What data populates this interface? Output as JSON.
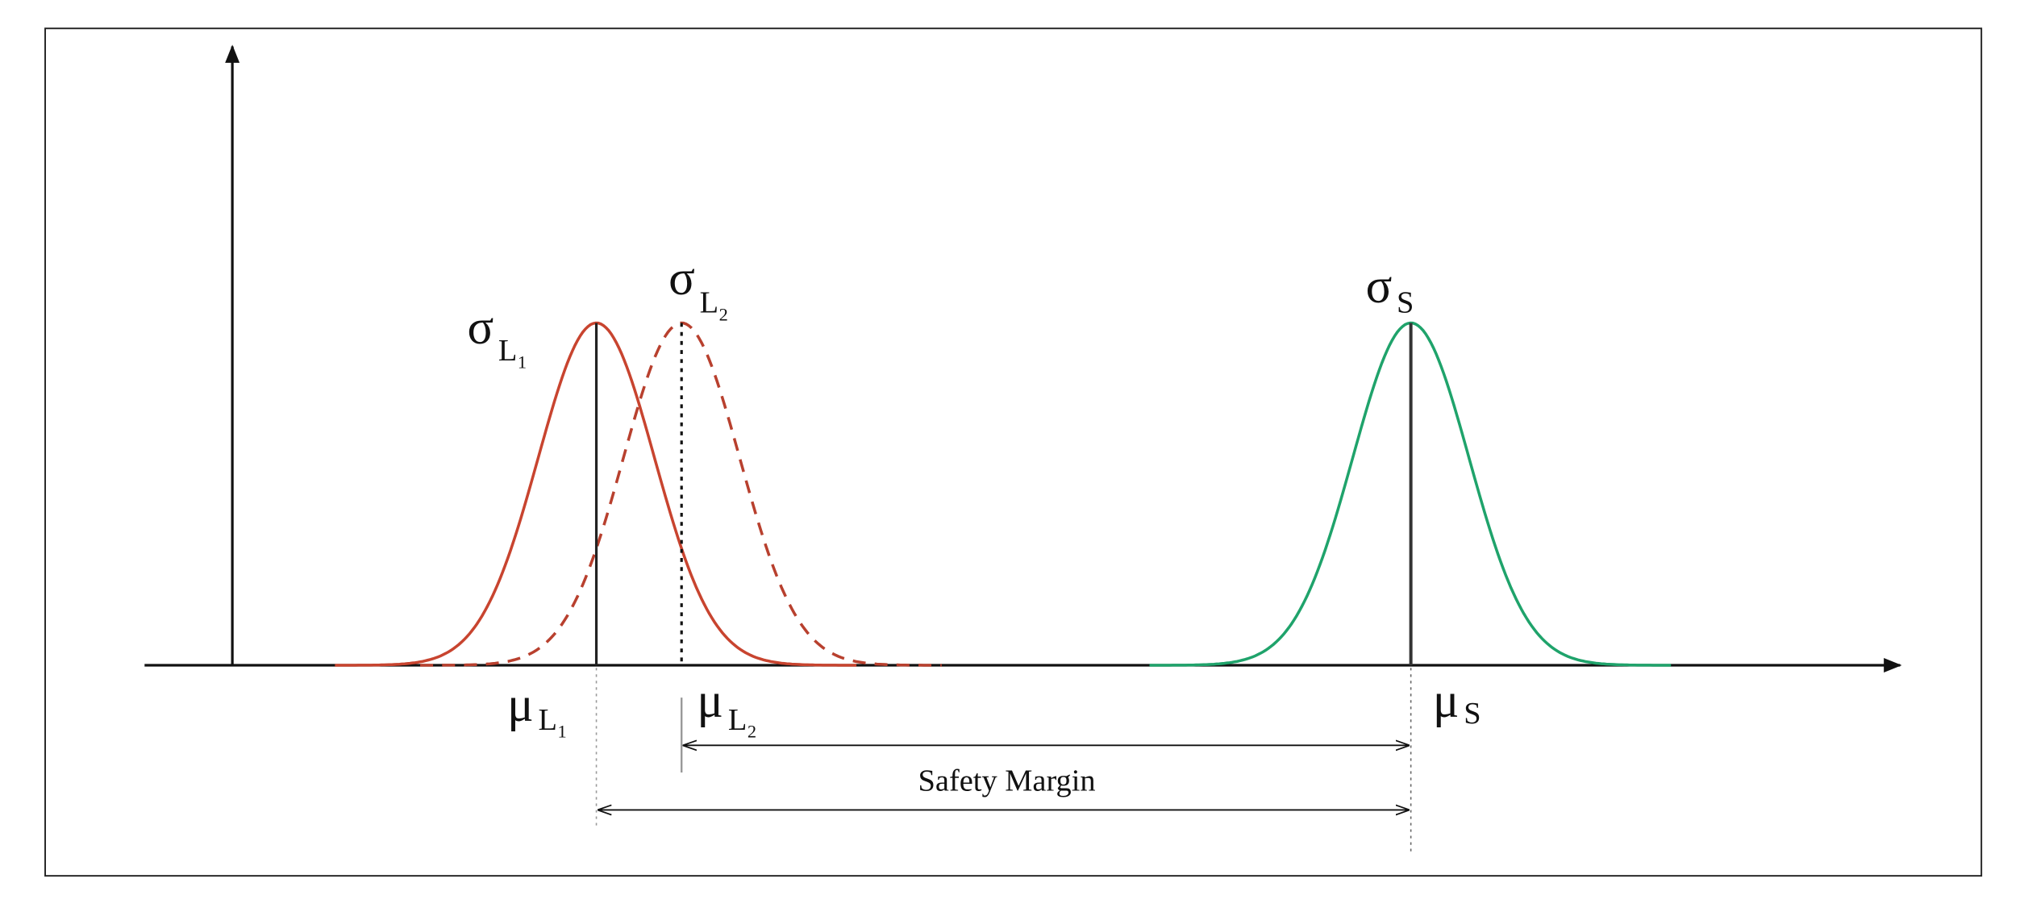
{
  "labels": {
    "sigma_l1": {
      "symbol": "σ",
      "subscript": "L",
      "index": "1"
    },
    "sigma_l2": {
      "symbol": "σ",
      "subscript": "L",
      "index": "2"
    },
    "sigma_s": {
      "symbol": "σ",
      "subscript": "S"
    },
    "mu_l1": {
      "symbol": "μ",
      "subscript": "L",
      "index": "1"
    },
    "mu_l2": {
      "symbol": "μ",
      "subscript": "L",
      "index": "2"
    },
    "mu_s": {
      "symbol": "μ",
      "subscript": "S"
    }
  },
  "caption": "Safety Margin"
}
